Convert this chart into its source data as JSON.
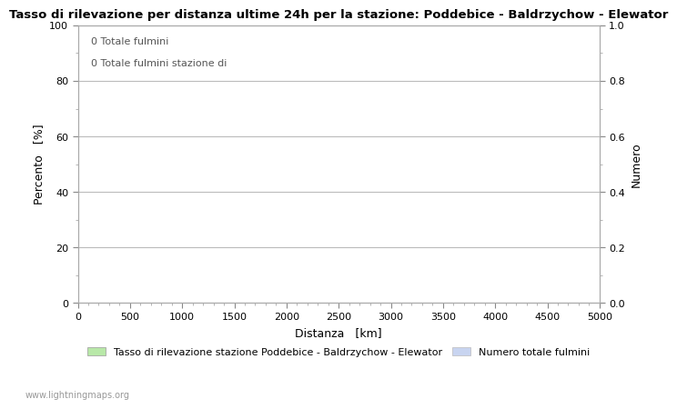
{
  "title": "Tasso di rilevazione per distanza ultime 24h per la stazione: Poddebice - Baldrzychow - Elewator",
  "xlabel": "Distanza   [km]",
  "ylabel_left": "Percento   [%]",
  "ylabel_right": "Numero",
  "annotation_line1": "0 Totale fulmini",
  "annotation_line2": "0 Totale fulmini stazione di",
  "xlim": [
    0,
    5000
  ],
  "ylim_left": [
    0,
    100
  ],
  "ylim_right": [
    0.0,
    1.0
  ],
  "xticks": [
    0,
    500,
    1000,
    1500,
    2000,
    2500,
    3000,
    3500,
    4000,
    4500,
    5000
  ],
  "yticks_left": [
    0,
    20,
    40,
    60,
    80,
    100
  ],
  "yticks_right": [
    0.0,
    0.2,
    0.4,
    0.6,
    0.8,
    1.0
  ],
  "grid_color": "#bbbbbb",
  "bg_color": "#ffffff",
  "plot_bg_color": "#ffffff",
  "legend_label_left": "Tasso di rilevazione stazione Poddebice - Baldrzychow - Elewator",
  "legend_label_right": "Numero totale fulmini",
  "legend_color_left": "#b8e8a8",
  "legend_color_right": "#c8d4f0",
  "watermark": "www.lightningmaps.org",
  "title_fontsize": 9.5,
  "axis_label_fontsize": 9,
  "tick_fontsize": 8,
  "legend_fontsize": 8,
  "annotation_fontsize": 8
}
